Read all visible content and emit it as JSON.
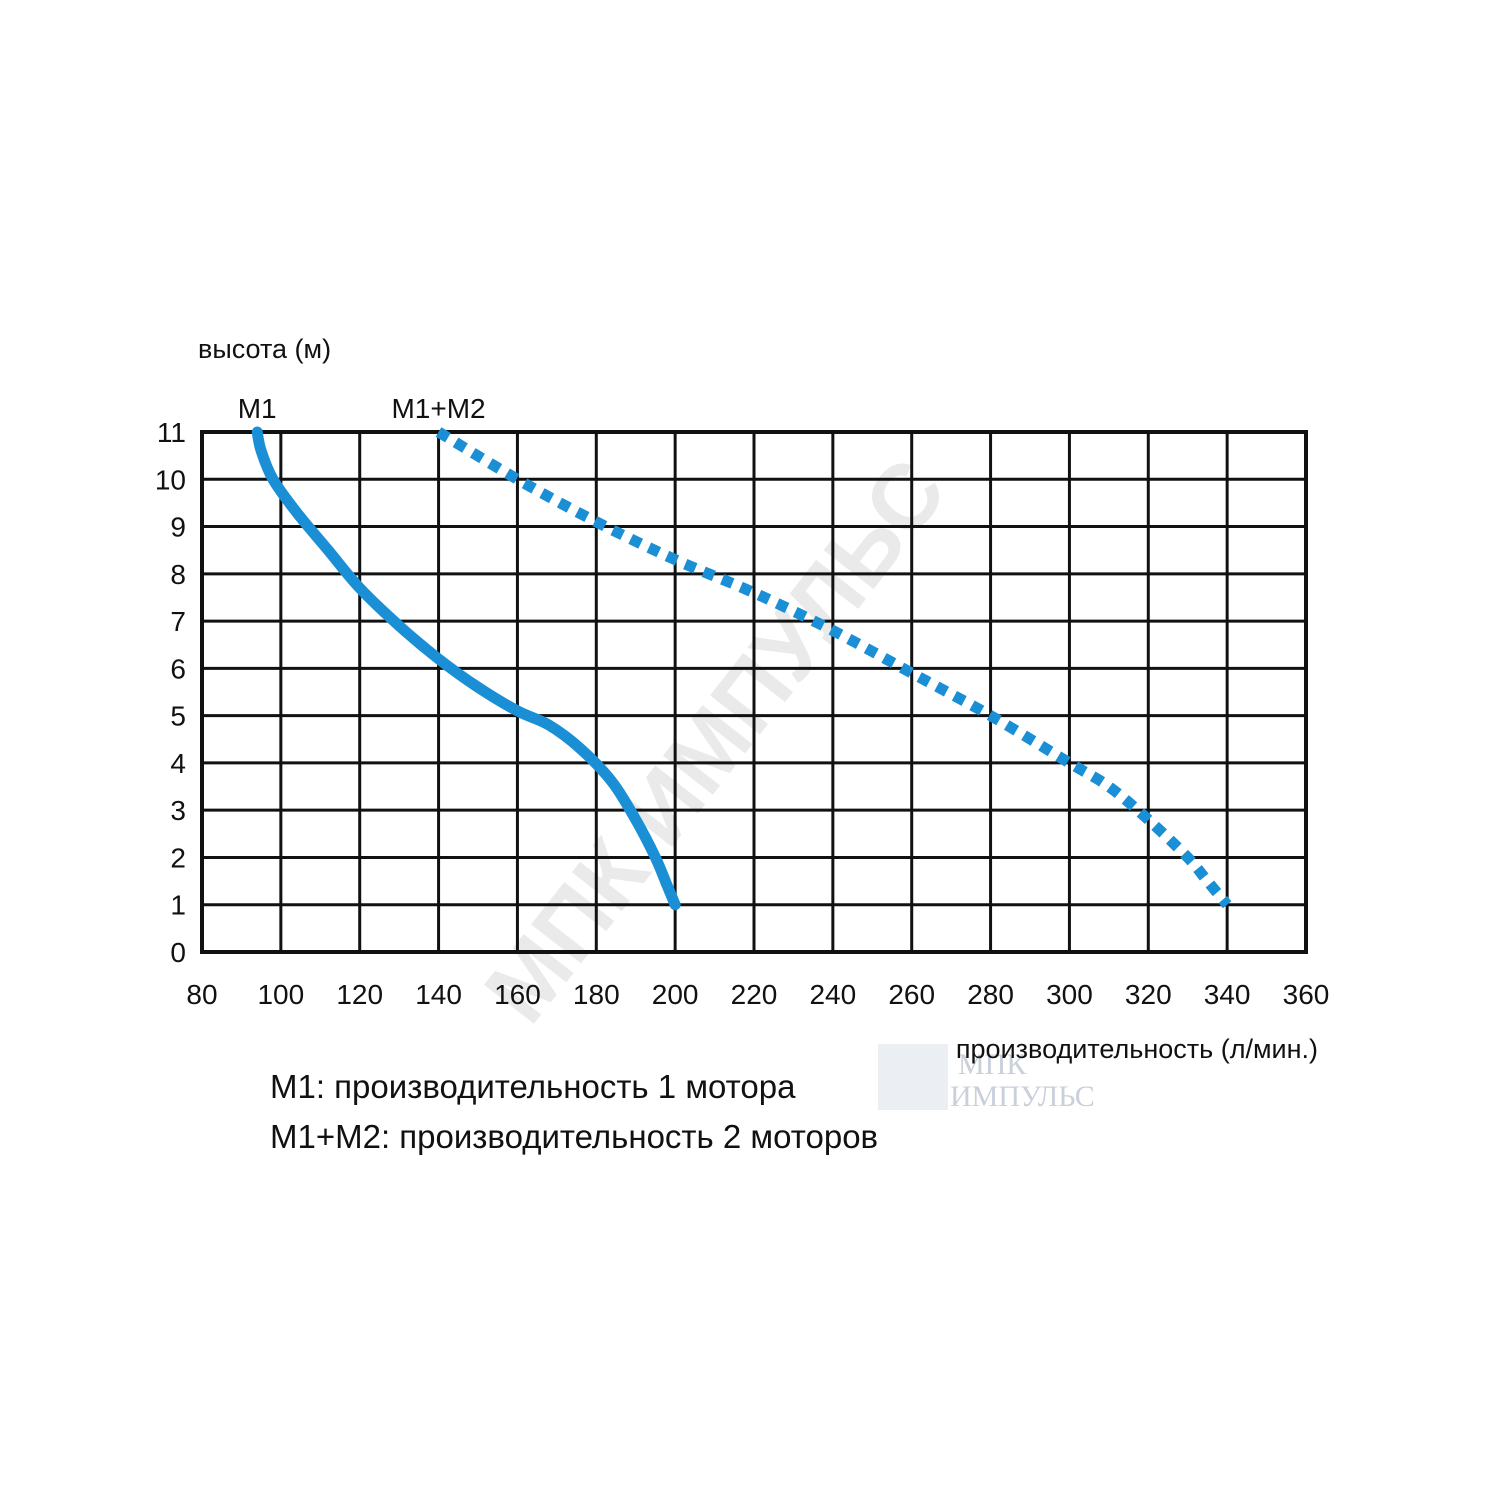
{
  "chart_data": {
    "type": "line",
    "ylabel": "высота (м)",
    "xlabel": "производительность (л/мин.)",
    "xlim": [
      80,
      360
    ],
    "ylim": [
      0,
      11
    ],
    "x_ticks": [
      80,
      100,
      120,
      140,
      160,
      180,
      200,
      220,
      240,
      260,
      280,
      300,
      320,
      340,
      360
    ],
    "y_ticks": [
      0,
      1,
      2,
      3,
      4,
      5,
      6,
      7,
      8,
      9,
      10,
      11
    ],
    "grid": true,
    "series": [
      {
        "name": "M1",
        "style": "solid",
        "color": "#1a8fd6",
        "points": [
          [
            94,
            11
          ],
          [
            95,
            10.6
          ],
          [
            98,
            10
          ],
          [
            104,
            9.3
          ],
          [
            112,
            8.5
          ],
          [
            120,
            7.7
          ],
          [
            130,
            6.9
          ],
          [
            140,
            6.2
          ],
          [
            150,
            5.6
          ],
          [
            160,
            5.1
          ],
          [
            168,
            4.8
          ],
          [
            176,
            4.3
          ],
          [
            184,
            3.6
          ],
          [
            190,
            2.8
          ],
          [
            195,
            2.0
          ],
          [
            198,
            1.4
          ],
          [
            200,
            1
          ]
        ]
      },
      {
        "name": "M1+M2",
        "style": "dotted",
        "color": "#1a8fd6",
        "points": [
          [
            140,
            11
          ],
          [
            160,
            10
          ],
          [
            180,
            9.1
          ],
          [
            200,
            8.3
          ],
          [
            220,
            7.6
          ],
          [
            240,
            6.8
          ],
          [
            260,
            5.9
          ],
          [
            280,
            5.0
          ],
          [
            300,
            4.0
          ],
          [
            310,
            3.5
          ],
          [
            320,
            2.8
          ],
          [
            330,
            2.0
          ],
          [
            335,
            1.5
          ],
          [
            340,
            1
          ]
        ]
      }
    ]
  },
  "legend": {
    "line1": "M1: производительность 1 мотора",
    "line2": "M1+M2: производительность 2 моторов"
  },
  "watermark": {
    "diagonal": "МПК ИМПУЛЬС",
    "line1": "МПК",
    "line2": "ИМПУЛЬС"
  }
}
